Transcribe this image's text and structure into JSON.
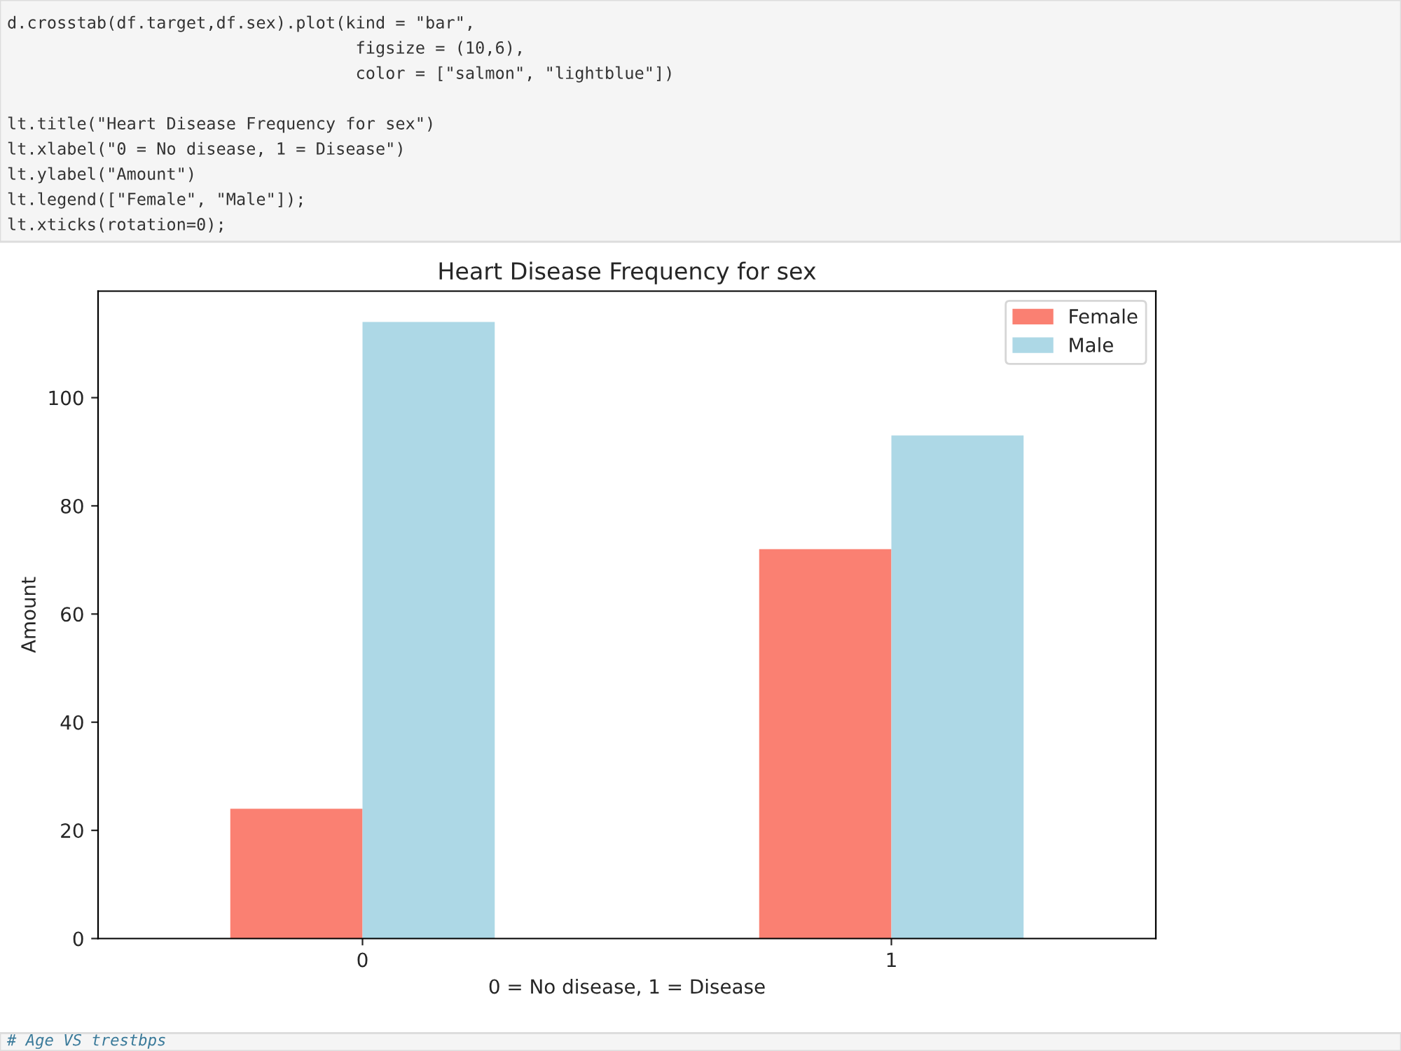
{
  "chart_data": {
    "type": "bar",
    "title": "Heart Disease Frequency for sex",
    "xlabel": "0 = No disease, 1 = Disease",
    "ylabel": "Amount",
    "categories": [
      "0",
      "1"
    ],
    "series": [
      {
        "name": "Female",
        "color": "#fa8072",
        "values": [
          24,
          72
        ]
      },
      {
        "name": "Male",
        "color": "#add8e6",
        "values": [
          114,
          93
        ]
      }
    ],
    "ylim": [
      0,
      119.7
    ],
    "yticks": [
      0,
      20,
      40,
      60,
      80,
      100
    ],
    "grid": false,
    "legend": "top right",
    "annotations": [
      "d.crosstab(df.target,df.sex).plot(kind = \"bar\",",
      "                                   figsize = (10,6),",
      "                                   color = [\"salmon\", \"lightblue\"])",
      "lt.title(\"Heart Disease Frequency for sex\")",
      "lt.xlabel(\"0 = No disease, 1 = Disease\")",
      "lt.ylabel(\"Amount\")",
      "lt.legend([\"Female\", \"Male\"]);",
      "lt.xticks(rotation=0);",
      "# Age VS trestbps"
    ]
  }
}
